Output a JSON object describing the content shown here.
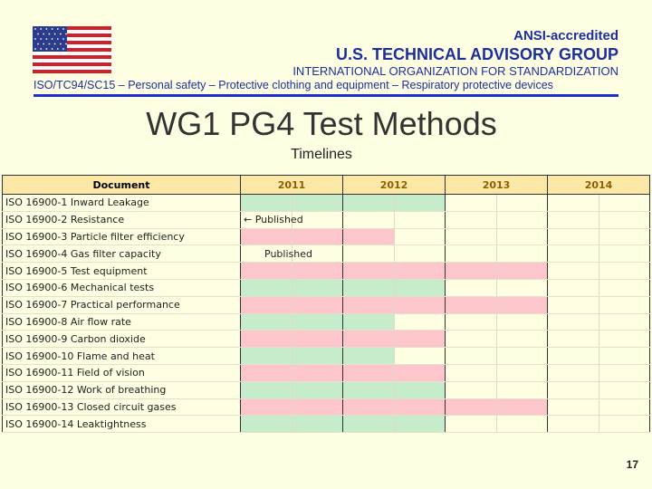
{
  "header": {
    "line1": "ANSI-accredited",
    "line2": "U.S. TECHNICAL ADVISORY GROUP",
    "line3": "INTERNATIONAL ORGANIZATION FOR STANDARDIZATION",
    "line4": "ISO/TC94/SC15 –  Personal safety –  Protective clothing and equipment –  Respiratory protective devices"
  },
  "title": "WG1 PG4 Test Methods",
  "subtitle": "Timelines",
  "table": {
    "doc_header": "Document",
    "years": [
      "2011",
      "2012",
      "2013",
      "2014"
    ],
    "colors": {
      "green": "#c6eccc",
      "pink": "#fdc5cc"
    },
    "rows": [
      {
        "doc": "ISO 16900-1 Inward Leakage",
        "color": "green",
        "halves": 4
      },
      {
        "doc": "ISO 16900-2 Resistance",
        "color": "none",
        "halves": 0,
        "note": "← Published"
      },
      {
        "doc": "ISO 16900-3 Particle filter efficiency",
        "color": "pink",
        "halves": 3
      },
      {
        "doc": "ISO 16900-4 Gas filter capacity",
        "color": "none",
        "halves": 0,
        "note": "Published",
        "note_indent": true
      },
      {
        "doc": "ISO 16900-5 Test equipment",
        "color": "pink",
        "halves": 6
      },
      {
        "doc": "ISO 16900-6 Mechanical tests",
        "color": "green",
        "halves": 4
      },
      {
        "doc": "ISO 16900-7 Practical performance",
        "color": "pink",
        "halves": 6
      },
      {
        "doc": "ISO 16900-8  Air flow rate",
        "color": "green",
        "halves": 3
      },
      {
        "doc": "ISO 16900-9 Carbon dioxide",
        "color": "pink",
        "halves": 4
      },
      {
        "doc": "ISO 16900-10 Flame and heat",
        "color": "green",
        "halves": 3
      },
      {
        "doc": "ISO 16900-11 Field of vision",
        "color": "pink",
        "halves": 4
      },
      {
        "doc": "ISO 16900-12 Work of breathing",
        "color": "green",
        "halves": 4
      },
      {
        "doc": "ISO 16900-13 Closed circuit gases",
        "color": "pink",
        "halves": 6
      },
      {
        "doc": "ISO 16900-14 Leaktightness",
        "color": "green",
        "halves": 4
      }
    ]
  },
  "page_number": "17"
}
